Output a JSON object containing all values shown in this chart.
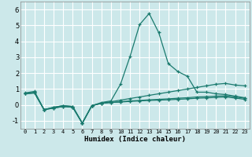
{
  "xlabel": "Humidex (Indice chaleur)",
  "x_values": [
    0,
    1,
    2,
    3,
    4,
    5,
    6,
    7,
    8,
    9,
    10,
    11,
    12,
    13,
    14,
    15,
    16,
    17,
    18,
    19,
    20,
    21,
    22,
    23
  ],
  "line_peak": [
    0.7,
    0.8,
    -0.3,
    -0.15,
    -0.05,
    -0.1,
    -1.15,
    -0.05,
    0.15,
    0.25,
    1.3,
    3.05,
    5.05,
    5.75,
    4.55,
    2.6,
    2.1,
    1.8,
    0.8,
    0.8,
    0.7,
    0.65,
    0.55,
    0.45
  ],
  "line_upper": [
    0.75,
    0.85,
    -0.3,
    -0.15,
    -0.05,
    -0.1,
    -1.15,
    -0.05,
    0.1,
    0.2,
    0.3,
    0.4,
    0.5,
    0.6,
    0.7,
    0.8,
    0.9,
    1.0,
    1.1,
    1.2,
    1.3,
    1.35,
    1.25,
    1.2
  ],
  "line_mid": [
    0.7,
    0.75,
    -0.3,
    -0.2,
    -0.1,
    -0.15,
    -1.15,
    -0.05,
    0.1,
    0.15,
    0.2,
    0.25,
    0.28,
    0.32,
    0.35,
    0.38,
    0.42,
    0.45,
    0.5,
    0.52,
    0.55,
    0.57,
    0.5,
    0.42
  ],
  "line_low": [
    0.7,
    0.75,
    -0.3,
    -0.2,
    -0.1,
    -0.15,
    -1.15,
    -0.05,
    0.1,
    0.15,
    0.18,
    0.22,
    0.25,
    0.28,
    0.3,
    0.32,
    0.35,
    0.38,
    0.42,
    0.44,
    0.47,
    0.5,
    0.43,
    0.35
  ],
  "bg_color": "#cce8ea",
  "grid_color": "#ffffff",
  "line_color": "#1a7a6e",
  "ylim": [
    -1.5,
    6.5
  ],
  "yticks": [
    -1,
    0,
    1,
    2,
    3,
    4,
    5,
    6
  ]
}
